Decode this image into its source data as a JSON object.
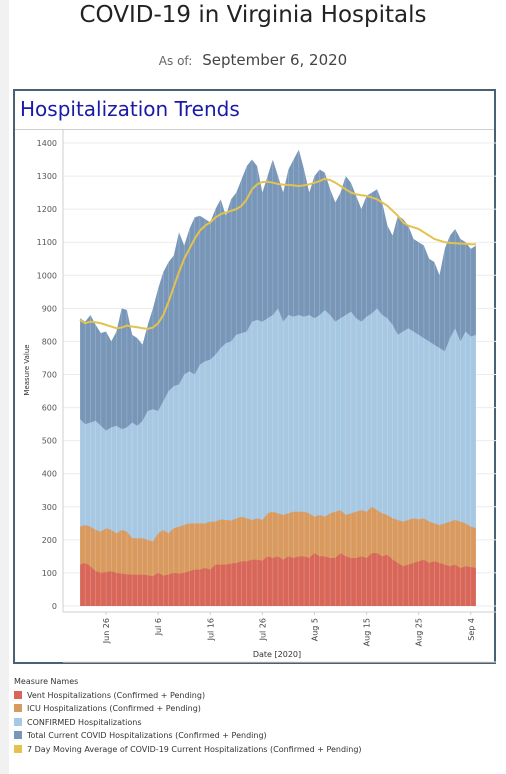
{
  "page": {
    "title": "COVID-19 in Virginia Hospitals",
    "as_of_label": "As of:",
    "as_of_date": "September 6, 2020"
  },
  "panel": {
    "title": "Hospitalization Trends"
  },
  "chart_data": {
    "type": "area",
    "xlabel": "Date [2020]",
    "ylabel": "Measure Value",
    "ylim": [
      0,
      1400
    ],
    "yticks": [
      0,
      100,
      200,
      300,
      400,
      500,
      600,
      700,
      800,
      900,
      1000,
      1100,
      1200,
      1300,
      1400
    ],
    "xtick_labels": [
      "Jun 26",
      "Jul 6",
      "Jul 16",
      "Jul 26",
      "Aug 5",
      "Aug 15",
      "Aug 25",
      "Sep 4"
    ],
    "xtick_index": [
      5,
      15,
      25,
      35,
      45,
      55,
      65,
      75
    ],
    "x_dates": [
      "Jun 21",
      "Jun 22",
      "Jun 23",
      "Jun 24",
      "Jun 25",
      "Jun 26",
      "Jun 27",
      "Jun 28",
      "Jun 29",
      "Jun 30",
      "Jul 1",
      "Jul 2",
      "Jul 3",
      "Jul 4",
      "Jul 5",
      "Jul 6",
      "Jul 7",
      "Jul 8",
      "Jul 9",
      "Jul 10",
      "Jul 11",
      "Jul 12",
      "Jul 13",
      "Jul 14",
      "Jul 15",
      "Jul 16",
      "Jul 17",
      "Jul 18",
      "Jul 19",
      "Jul 20",
      "Jul 21",
      "Jul 22",
      "Jul 23",
      "Jul 24",
      "Jul 25",
      "Jul 26",
      "Jul 27",
      "Jul 28",
      "Jul 29",
      "Jul 30",
      "Jul 31",
      "Aug 1",
      "Aug 2",
      "Aug 3",
      "Aug 4",
      "Aug 5",
      "Aug 6",
      "Aug 7",
      "Aug 8",
      "Aug 9",
      "Aug 10",
      "Aug 11",
      "Aug 12",
      "Aug 13",
      "Aug 14",
      "Aug 15",
      "Aug 16",
      "Aug 17",
      "Aug 18",
      "Aug 19",
      "Aug 20",
      "Aug 21",
      "Aug 22",
      "Aug 23",
      "Aug 24",
      "Aug 25",
      "Aug 26",
      "Aug 27",
      "Aug 28",
      "Aug 29",
      "Aug 30",
      "Aug 31",
      "Sep 1",
      "Sep 2",
      "Sep 3",
      "Sep 4",
      "Sep 5"
    ],
    "grid": true,
    "legend_title": "Measure Names",
    "legend_position": "bottom-left",
    "series": [
      {
        "name": "Vent Hospitalizations (Confirmed + Pending)",
        "kind": "area",
        "color": "#d8675a",
        "values": [
          125,
          130,
          120,
          105,
          100,
          102,
          105,
          100,
          98,
          96,
          95,
          94,
          95,
          93,
          90,
          100,
          92,
          95,
          100,
          98,
          100,
          105,
          110,
          110,
          115,
          110,
          125,
          125,
          125,
          128,
          130,
          135,
          135,
          140,
          140,
          137,
          150,
          145,
          150,
          140,
          150,
          145,
          150,
          150,
          145,
          160,
          150,
          150,
          145,
          145,
          160,
          150,
          145,
          145,
          150,
          145,
          160,
          160,
          150,
          155,
          140,
          130,
          120,
          125,
          130,
          135,
          140,
          130,
          135,
          130,
          125,
          120,
          125,
          115,
          120,
          118,
          115
        ]
      },
      {
        "name": "ICU Hospitalizations (Confirmed + Pending)",
        "kind": "area",
        "color": "#d99a5f",
        "values": [
          240,
          245,
          240,
          230,
          225,
          235,
          230,
          220,
          230,
          225,
          205,
          205,
          205,
          200,
          195,
          220,
          230,
          220,
          235,
          240,
          245,
          250,
          250,
          250,
          250,
          255,
          255,
          262,
          260,
          258,
          265,
          270,
          265,
          260,
          265,
          260,
          280,
          285,
          280,
          275,
          280,
          285,
          285,
          285,
          280,
          270,
          275,
          270,
          280,
          285,
          290,
          275,
          280,
          285,
          290,
          285,
          300,
          290,
          280,
          275,
          265,
          260,
          255,
          260,
          265,
          262,
          265,
          255,
          250,
          245,
          250,
          255,
          260,
          255,
          250,
          240,
          235
        ]
      },
      {
        "name": "CONFIRMED Hospitalizations",
        "kind": "area",
        "color": "#a7c8e2",
        "values": [
          565,
          550,
          555,
          560,
          545,
          530,
          540,
          545,
          535,
          540,
          555,
          545,
          560,
          590,
          595,
          590,
          620,
          650,
          665,
          670,
          700,
          710,
          700,
          730,
          740,
          745,
          760,
          780,
          795,
          800,
          820,
          825,
          830,
          860,
          865,
          860,
          870,
          880,
          900,
          860,
          880,
          875,
          880,
          875,
          880,
          870,
          880,
          895,
          880,
          860,
          870,
          880,
          890,
          870,
          860,
          875,
          885,
          900,
          880,
          870,
          850,
          820,
          830,
          840,
          830,
          820,
          810,
          800,
          790,
          780,
          770,
          810,
          840,
          800,
          830,
          815,
          820
        ]
      },
      {
        "name": "Total Current COVID Hospitalizations (Confirmed + Pending)",
        "kind": "area",
        "color": "#7896b8",
        "values": [
          870,
          860,
          880,
          850,
          825,
          830,
          800,
          830,
          900,
          895,
          820,
          810,
          790,
          850,
          900,
          960,
          1010,
          1040,
          1060,
          1130,
          1090,
          1140,
          1175,
          1180,
          1170,
          1160,
          1200,
          1230,
          1180,
          1230,
          1250,
          1290,
          1330,
          1350,
          1330,
          1250,
          1300,
          1350,
          1300,
          1250,
          1320,
          1350,
          1380,
          1320,
          1250,
          1300,
          1320,
          1310,
          1260,
          1220,
          1250,
          1300,
          1280,
          1240,
          1200,
          1240,
          1250,
          1260,
          1220,
          1150,
          1120,
          1180,
          1170,
          1150,
          1110,
          1100,
          1090,
          1050,
          1040,
          1000,
          1080,
          1120,
          1140,
          1110,
          1100,
          1080,
          1090
        ]
      },
      {
        "name": "7 Day Moving Average of COVID-19 Current Hospitalizations (Confirmed + Pending)",
        "kind": "line",
        "color": "#e3c24f",
        "values": [
          865,
          855,
          860,
          858,
          855,
          850,
          845,
          840,
          842,
          848,
          845,
          843,
          840,
          838,
          842,
          855,
          880,
          920,
          965,
          1010,
          1050,
          1080,
          1110,
          1135,
          1150,
          1160,
          1175,
          1185,
          1190,
          1195,
          1200,
          1210,
          1230,
          1260,
          1275,
          1282,
          1283,
          1280,
          1276,
          1274,
          1273,
          1272,
          1270,
          1272,
          1275,
          1280,
          1285,
          1292,
          1288,
          1280,
          1270,
          1260,
          1250,
          1245,
          1242,
          1240,
          1235,
          1230,
          1220,
          1210,
          1195,
          1180,
          1160,
          1150,
          1145,
          1140,
          1130,
          1120,
          1110,
          1105,
          1100,
          1098,
          1097,
          1096,
          1095,
          1094,
          1094
        ]
      }
    ]
  }
}
